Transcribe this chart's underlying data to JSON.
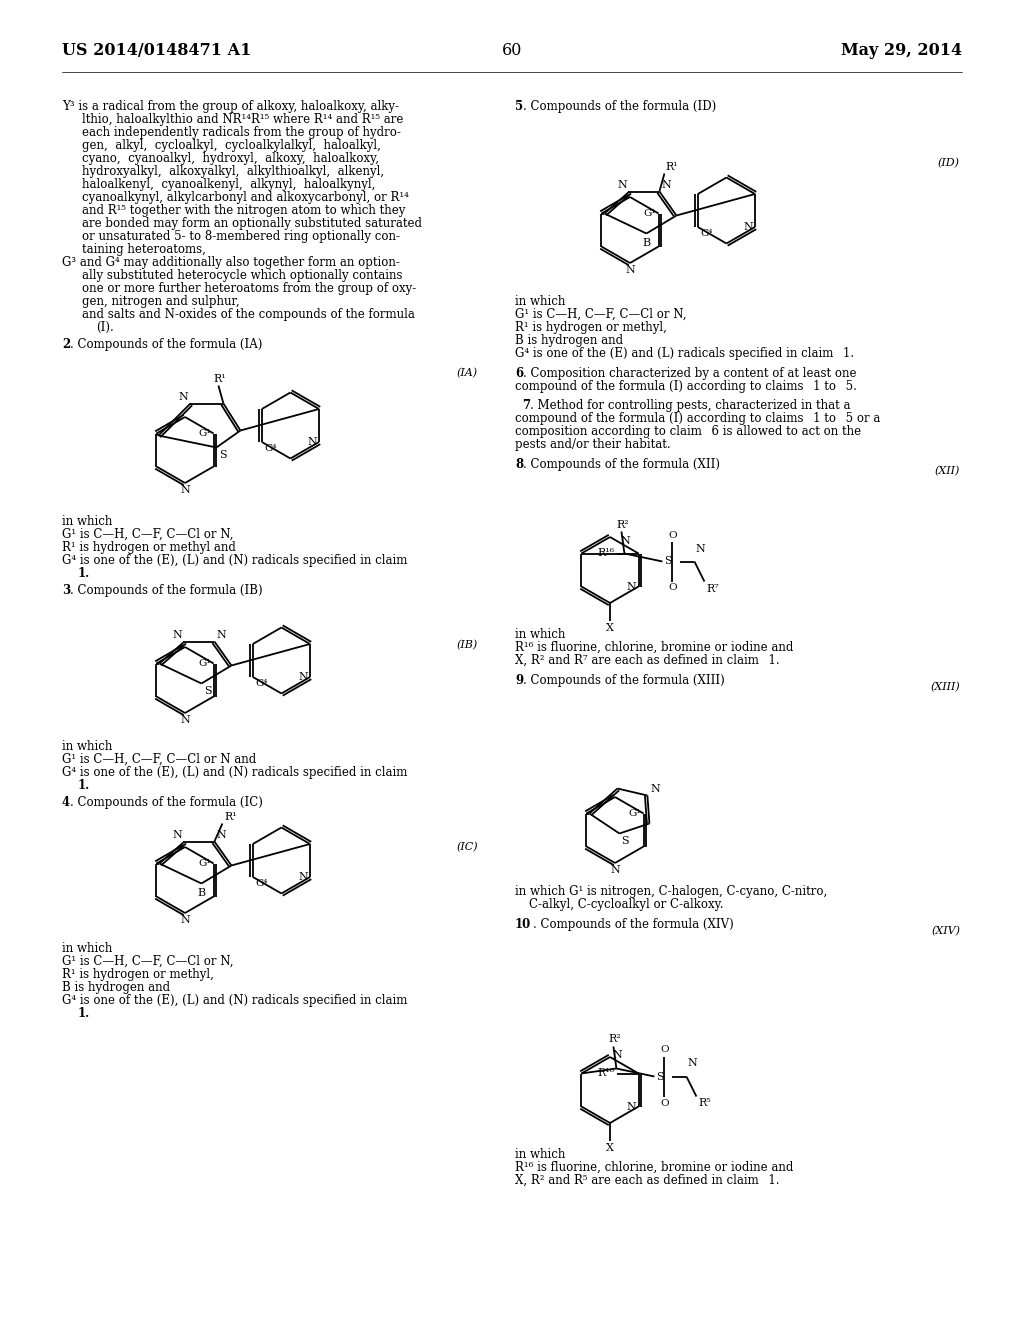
{
  "background_color": "#ffffff",
  "header_left": "US 2014/0148471 A1",
  "header_center": "60",
  "header_right": "May 29, 2014",
  "font_family": "DejaVu Serif",
  "small": 8.5,
  "col_div": 0.502
}
